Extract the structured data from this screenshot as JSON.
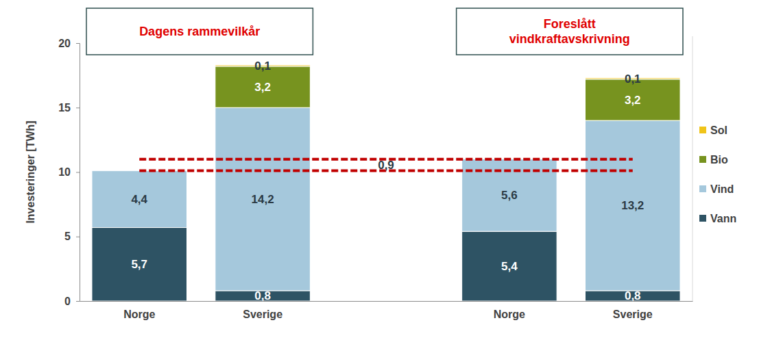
{
  "chart_data": {
    "type": "bar",
    "stacked": true,
    "data_labels": true,
    "grid": false,
    "legend": "right",
    "y_label": "Investeringer [TWh]",
    "categories": [
      "Norge",
      "Sverige",
      null,
      "Norge",
      "Sverige"
    ],
    "ylim": [
      0,
      20
    ],
    "yticks": [
      0,
      5,
      10,
      15,
      20
    ],
    "series": [
      {
        "name": "Vann",
        "color": "#2e5364",
        "values": [
          5.7,
          0.8,
          null,
          5.4,
          0.8
        ],
        "value_labels": [
          "5,7",
          "0,8",
          null,
          "5,4",
          "0,8"
        ]
      },
      {
        "name": "Vind",
        "color": "#a5c8dc",
        "values": [
          4.4,
          14.2,
          null,
          5.6,
          13.2
        ],
        "value_labels": [
          "4,4",
          "14,2",
          null,
          "5,6",
          "13,2"
        ]
      },
      {
        "name": "Bio",
        "color": "#77931f",
        "values": [
          null,
          3.2,
          null,
          null,
          3.2
        ],
        "value_labels": [
          null,
          "3,2",
          null,
          null,
          "3,2"
        ]
      },
      {
        "name": "Sol",
        "color": "#f0c419",
        "values": [
          null,
          0.1,
          null,
          null,
          0.1
        ],
        "value_labels": [
          null,
          "0,1",
          null,
          null,
          "0,1"
        ]
      }
    ],
    "annotations": [
      {
        "lines": [
          "Dagens rammevilkår"
        ]
      },
      {
        "lines": [
          "Foreslått",
          "vindkraftavskrivning"
        ]
      }
    ],
    "reference_lines": [
      {
        "value": 10.1
      },
      {
        "value": 11.0
      }
    ],
    "difference": {
      "value": 0.9,
      "label": "0,9"
    }
  }
}
